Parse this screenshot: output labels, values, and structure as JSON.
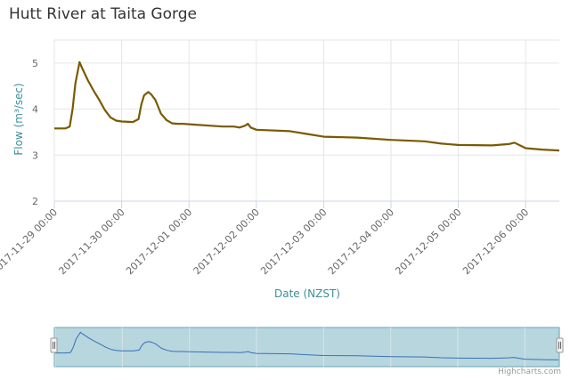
{
  "chart_data": {
    "type": "line",
    "title": "Hutt River at Taita Gorge",
    "xlabel": "Date (NZST)",
    "ylabel": "Flow (m³/sec)",
    "ylim": [
      2,
      5.5
    ],
    "yticks": [
      2,
      3,
      4,
      5
    ],
    "xlim": [
      "2017-11-29 00:00",
      "2017-12-06 12:00"
    ],
    "xticks": [
      "2017-11-29 00:00",
      "2017-11-30 00:00",
      "2017-12-01 00:00",
      "2017-12-02 00:00",
      "2017-12-03 00:00",
      "2017-12-04 00:00",
      "2017-12-05 00:00",
      "2017-12-06 00:00"
    ],
    "grid": true,
    "series": [
      {
        "color": "#7a5a00",
        "x": [
          "2017-11-29 00:00",
          "2017-11-29 04:00",
          "2017-11-29 05:30",
          "2017-11-29 06:30",
          "2017-11-29 07:30",
          "2017-11-29 09:00",
          "2017-11-29 10:00",
          "2017-11-29 12:00",
          "2017-11-29 14:00",
          "2017-11-29 16:00",
          "2017-11-29 18:00",
          "2017-11-29 20:00",
          "2017-11-29 22:00",
          "2017-11-30 00:00",
          "2017-11-30 04:00",
          "2017-11-30 06:00",
          "2017-11-30 07:00",
          "2017-11-30 08:00",
          "2017-11-30 09:30",
          "2017-11-30 10:30",
          "2017-11-30 12:00",
          "2017-11-30 13:00",
          "2017-11-30 14:00",
          "2017-11-30 16:00",
          "2017-11-30 18:00",
          "2017-11-30 20:00",
          "2017-11-30 22:00",
          "2017-12-01 00:00",
          "2017-12-01 12:00",
          "2017-12-01 16:00",
          "2017-12-01 18:00",
          "2017-12-01 20:00",
          "2017-12-01 21:00",
          "2017-12-01 22:00",
          "2017-12-02 00:00",
          "2017-12-02 12:00",
          "2017-12-02 18:00",
          "2017-12-03 00:00",
          "2017-12-03 12:00",
          "2017-12-04 00:00",
          "2017-12-04 12:00",
          "2017-12-04 18:00",
          "2017-12-05 00:00",
          "2017-12-05 12:00",
          "2017-12-05 18:00",
          "2017-12-05 20:00",
          "2017-12-06 00:00",
          "2017-12-06 06:00",
          "2017-12-06 12:00"
        ],
        "values": [
          3.58,
          3.58,
          3.62,
          4.0,
          4.55,
          5.02,
          4.88,
          4.62,
          4.4,
          4.2,
          3.98,
          3.82,
          3.75,
          3.73,
          3.72,
          3.78,
          4.1,
          4.3,
          4.37,
          4.32,
          4.2,
          4.05,
          3.9,
          3.76,
          3.69,
          3.68,
          3.68,
          3.67,
          3.62,
          3.62,
          3.6,
          3.64,
          3.68,
          3.6,
          3.55,
          3.52,
          3.46,
          3.4,
          3.38,
          3.33,
          3.3,
          3.25,
          3.22,
          3.21,
          3.24,
          3.27,
          3.15,
          3.12,
          3.1
        ]
      }
    ]
  },
  "credits": "Highcharts.com"
}
